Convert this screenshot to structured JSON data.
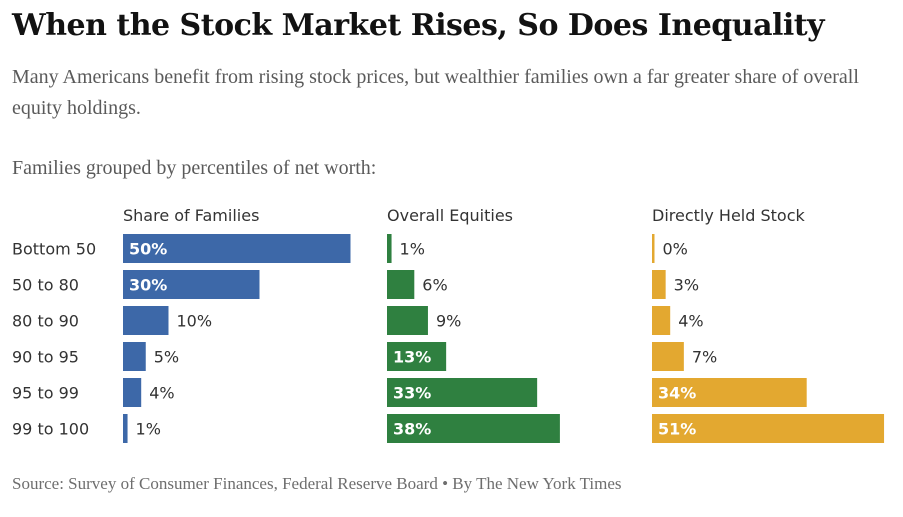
{
  "header": {
    "title": "When the Stock Market Rises, So Does Inequality",
    "subtitle": "Many Americans benefit from rising stock prices, but wealthier families own a far greater share of overall equity holdings.",
    "intro": "Families grouped by percentiles of net worth:"
  },
  "footer": {
    "source": "Source: Survey of Consumer Finances, Federal Reserve Board • By The New York Times"
  },
  "chart_data": {
    "type": "bar",
    "orientation": "horizontal",
    "categories": [
      "Bottom 50",
      "50 to 80",
      "80 to 90",
      "90 to 95",
      "95 to 99",
      "99 to 100"
    ],
    "series": [
      {
        "name": "Share of Families",
        "values": [
          50,
          30,
          10,
          5,
          4,
          1
        ],
        "labels": [
          "50%",
          "30%",
          "10%",
          "5%",
          "4%",
          "1%"
        ],
        "color": "#3d68a8"
      },
      {
        "name": "Overall Equities",
        "values": [
          1,
          6,
          9,
          13,
          33,
          38
        ],
        "labels": [
          "1%",
          "6%",
          "9%",
          "13%",
          "33%",
          "38%"
        ],
        "color": "#2f8040"
      },
      {
        "name": "Directly Held Stock",
        "values": [
          0,
          3,
          4,
          7,
          34,
          51
        ],
        "labels": [
          "0%",
          "3%",
          "4%",
          "7%",
          "34%",
          "51%"
        ],
        "color": "#e3a830"
      }
    ],
    "xlim": [
      0,
      51
    ],
    "grid": false,
    "legend": "none"
  }
}
